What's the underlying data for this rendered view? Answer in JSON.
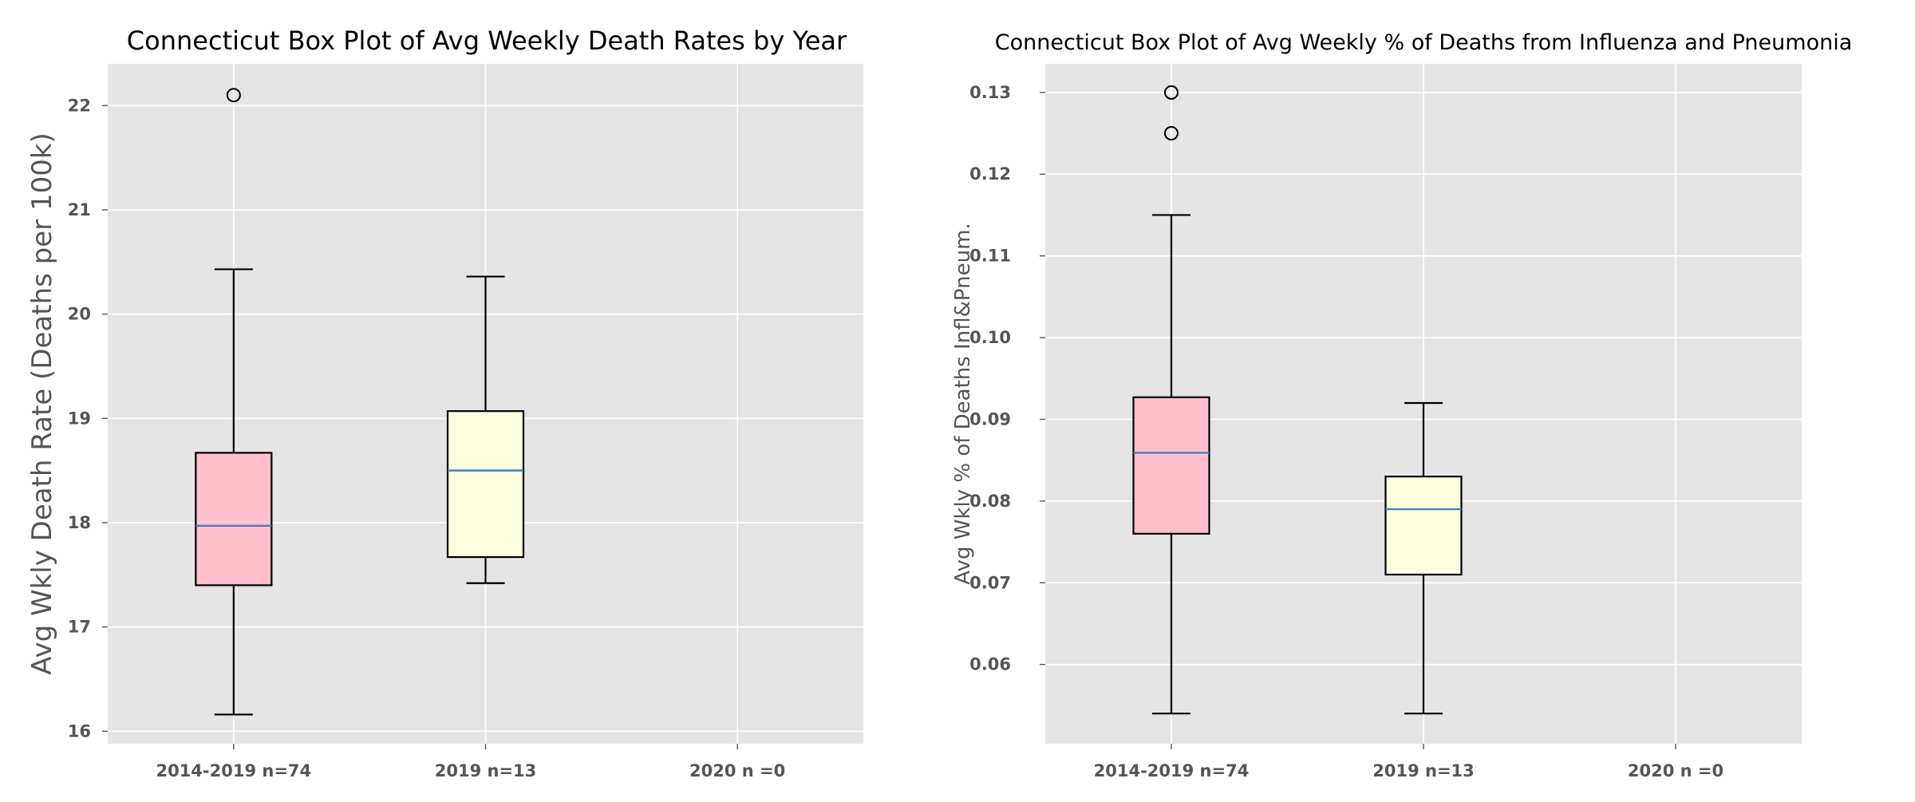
{
  "chart_data": [
    {
      "type": "box",
      "title": "Connecticut Box Plot of Avg Weekly Death Rates by Year",
      "xlabel": "",
      "ylabel": "Avg Wkly Death Rate (Deaths per 100k)",
      "ylim": [
        15.88,
        22.4
      ],
      "yticks": [
        16,
        17,
        18,
        19,
        20,
        21,
        22
      ],
      "ytick_labels": [
        "16",
        "17",
        "18",
        "19",
        "20",
        "21",
        "22"
      ],
      "categories": [
        "2014-2019 n=74",
        "2019 n=13",
        "2020 n =0"
      ],
      "grid": true,
      "boxes": [
        {
          "category": "2014-2019 n=74",
          "whisker_low": 16.16,
          "q1": 17.4,
          "median": 17.97,
          "q3": 18.67,
          "whisker_high": 20.43,
          "outliers": [
            22.1
          ],
          "color": "#ffc0cb"
        },
        {
          "category": "2019 n=13",
          "whisker_low": 17.42,
          "q1": 17.67,
          "median": 18.5,
          "q3": 19.07,
          "whisker_high": 20.36,
          "outliers": [],
          "color": "#ffffe0"
        },
        {
          "category": "2020 n =0",
          "empty": true
        }
      ]
    },
    {
      "type": "box",
      "title": "Connecticut Box Plot of Avg Weekly % of Deaths from Influenza and Pneumonia",
      "xlabel": "",
      "ylabel": "Avg Wkly % of Deaths Infl&Pneum.",
      "ylim": [
        0.0503,
        0.1335
      ],
      "yticks": [
        0.06,
        0.07,
        0.08,
        0.09,
        0.1,
        0.11,
        0.12,
        0.13
      ],
      "ytick_labels": [
        "0.06",
        "0.07",
        "0.08",
        "0.09",
        "0.10",
        "0.11",
        "0.12",
        "0.13"
      ],
      "categories": [
        "2014-2019 n=74",
        "2019 n=13",
        "2020 n =0"
      ],
      "grid": true,
      "boxes": [
        {
          "category": "2014-2019 n=74",
          "whisker_low": 0.054,
          "q1": 0.076,
          "median": 0.0859,
          "q3": 0.0927,
          "whisker_high": 0.115,
          "outliers": [
            0.125,
            0.13
          ],
          "color": "#ffc0cb"
        },
        {
          "category": "2019 n=13",
          "whisker_low": 0.054,
          "q1": 0.071,
          "median": 0.079,
          "q3": 0.083,
          "whisker_high": 0.092,
          "outliers": [],
          "color": "#ffffe0"
        },
        {
          "category": "2020 n =0",
          "empty": true
        }
      ]
    }
  ],
  "colors": {
    "plot_background": "#e5e5e5",
    "grid": "#ffffff",
    "median": "#3b82c4",
    "box_edge": "#000000",
    "text": "#555555"
  }
}
